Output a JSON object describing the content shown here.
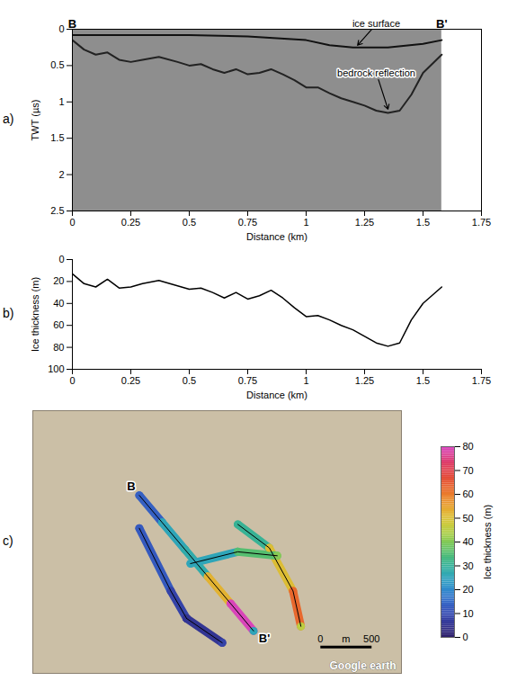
{
  "chart_data": [
    {
      "panel": "a)",
      "type": "line",
      "x_label": "Distance (km)",
      "y_label": "TWT (µs)",
      "xlim": [
        0,
        1.75
      ],
      "xticks": [
        0,
        0.25,
        0.5,
        0.75,
        1,
        1.25,
        1.5,
        1.75
      ],
      "ylim": [
        2.5,
        0
      ],
      "yticks": [
        0,
        0.5,
        1,
        1.5,
        2,
        2.5
      ],
      "series": [
        {
          "name": "ice surface",
          "color": "#111111",
          "x": [
            0,
            0.25,
            0.5,
            0.75,
            1.0,
            1.1,
            1.2,
            1.35,
            1.5,
            1.58
          ],
          "values": [
            0.08,
            0.08,
            0.08,
            0.1,
            0.15,
            0.22,
            0.25,
            0.25,
            0.2,
            0.15
          ],
          "label_at": [
            1.3,
            -0.07
          ],
          "arrow_to": [
            1.22,
            0.22
          ]
        },
        {
          "name": "bedrock reflection",
          "color": "#222222",
          "x": [
            0,
            0.05,
            0.1,
            0.15,
            0.2,
            0.25,
            0.3,
            0.37,
            0.45,
            0.5,
            0.55,
            0.6,
            0.65,
            0.7,
            0.75,
            0.8,
            0.85,
            0.9,
            0.95,
            1.0,
            1.05,
            1.1,
            1.15,
            1.2,
            1.25,
            1.3,
            1.35,
            1.4,
            1.45,
            1.5,
            1.58
          ],
          "values": [
            0.15,
            0.28,
            0.35,
            0.32,
            0.42,
            0.45,
            0.42,
            0.38,
            0.45,
            0.5,
            0.48,
            0.55,
            0.6,
            0.55,
            0.62,
            0.6,
            0.55,
            0.62,
            0.7,
            0.8,
            0.8,
            0.88,
            0.95,
            1.0,
            1.05,
            1.12,
            1.15,
            1.12,
            0.9,
            0.6,
            0.35
          ],
          "label_at": [
            1.3,
            0.6
          ],
          "arrow_to": [
            1.35,
            1.1
          ]
        }
      ],
      "annotations": [
        {
          "text": "B",
          "x": 0,
          "y": -0.07
        },
        {
          "text": "B'",
          "x": 1.58,
          "y": -0.07
        }
      ]
    },
    {
      "panel": "b)",
      "type": "line",
      "x_label": "Distance (km)",
      "y_label": "Ice thickness (m)",
      "xlim": [
        0,
        1.75
      ],
      "xticks": [
        0,
        0.25,
        0.5,
        0.75,
        1,
        1.25,
        1.5,
        1.75
      ],
      "ylim": [
        100,
        0
      ],
      "yticks": [
        0,
        20,
        40,
        60,
        80,
        100
      ],
      "color": "#000000",
      "x": [
        0,
        0.05,
        0.1,
        0.15,
        0.2,
        0.25,
        0.3,
        0.37,
        0.45,
        0.5,
        0.55,
        0.6,
        0.65,
        0.7,
        0.75,
        0.8,
        0.85,
        0.9,
        0.95,
        1.0,
        1.05,
        1.1,
        1.15,
        1.2,
        1.25,
        1.3,
        1.35,
        1.4,
        1.45,
        1.5,
        1.58
      ],
      "values": [
        13,
        22,
        25,
        18,
        26,
        25,
        22,
        19,
        24,
        27,
        26,
        30,
        35,
        30,
        36,
        33,
        28,
        35,
        44,
        52,
        51,
        55,
        60,
        64,
        70,
        76,
        79,
        76,
        55,
        40,
        25
      ]
    },
    {
      "panel": "c)",
      "type": "map",
      "xlim": [
        0,
        3600
      ],
      "ylim": [
        0,
        2580
      ],
      "tick_labels": false,
      "color": "#000000",
      "tracks": [
        {
          "x": [
            1040,
            1263,
            1486,
            1709,
            1932,
            2156
          ],
          "y": [
            1748,
            1482,
            1216,
            951,
            685,
            416
          ],
          "values": [
            13,
            25,
            27,
            52,
            79,
            25
          ],
          "start_label": "B",
          "end_label": "B'"
        },
        {
          "x": [
            1040,
            1348,
            1502
          ],
          "y": [
            1425,
            809,
            539
          ],
          "values": [
            12,
            8,
            5
          ]
        },
        {
          "x": [
            1502,
            1850
          ],
          "y": [
            539,
            300
          ],
          "values": [
            5,
            8
          ]
        },
        {
          "x": [
            2002,
            2310,
            2541,
            2618
          ],
          "y": [
            1463,
            1232,
            809,
            462
          ],
          "values": [
            30,
            50,
            62,
            45
          ]
        },
        {
          "x": [
            1540,
            2002,
            2387
          ],
          "y": [
            1078,
            1194,
            1155
          ],
          "values": [
            25,
            35,
            40
          ]
        }
      ],
      "colorbar": {
        "label": "Ice thickness (m)",
        "range": [
          0,
          80
        ],
        "ticks": [
          0,
          10,
          20,
          30,
          40,
          50,
          60,
          70,
          80
        ]
      },
      "scale_bar": {
        "values": [
          0,
          500
        ],
        "unit": "m"
      },
      "watermark": "Google earth"
    }
  ]
}
